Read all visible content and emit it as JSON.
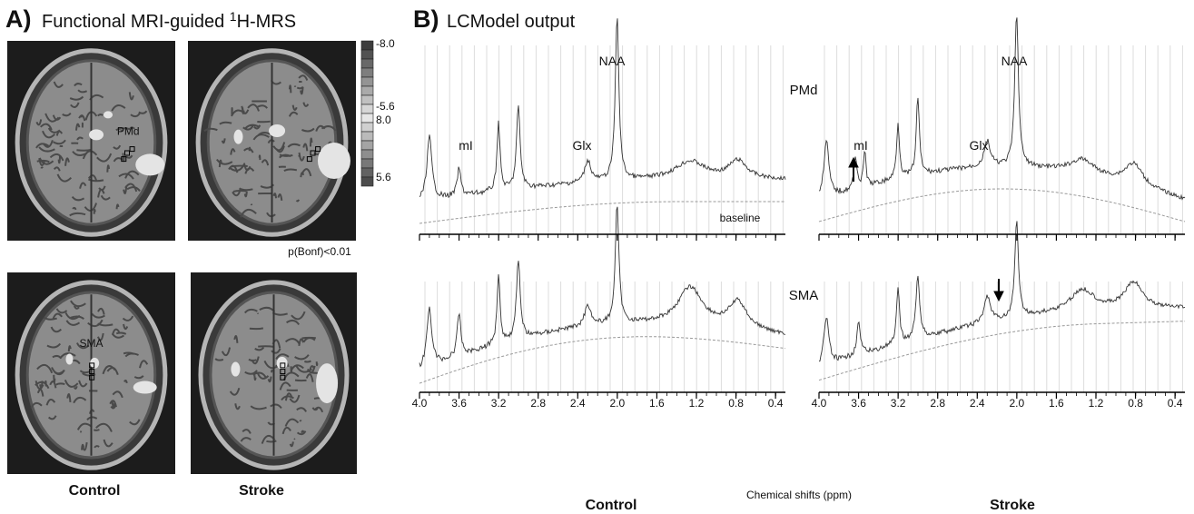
{
  "panel_a": {
    "label": "A)",
    "title_pre": "Functional MRI-guided ",
    "title_sup": "1",
    "title_post": "H-MRS",
    "colorbar_labels": [
      "-8.0",
      "-5.6",
      "8.0",
      "5.6"
    ],
    "threshold": "p(Bonf)<0.01",
    "region_labels": [
      "PMd",
      "SMA"
    ],
    "columns": [
      "Control",
      "Stroke"
    ]
  },
  "panel_b": {
    "label": "B)",
    "title": "LCModel output",
    "annotations": {
      "naa": "NAA",
      "mi": "mI",
      "glx": "Glx",
      "baseline": "baseline",
      "pmd": "PMd",
      "sma": "SMA"
    },
    "xaxis": {
      "label": "Chemical shifts (ppm)",
      "xlim": [
        4.0,
        0.3
      ],
      "xticks": [
        {
          "value": 4.0,
          "label": "4.0"
        },
        {
          "value": 3.6,
          "label": "3.6"
        },
        {
          "value": 3.2,
          "label": "3.2"
        },
        {
          "value": 2.8,
          "label": "2.8"
        },
        {
          "value": 2.4,
          "label": "2.4"
        },
        {
          "value": 2.0,
          "label": "2.0"
        },
        {
          "value": 1.6,
          "label": "1.6"
        },
        {
          "value": 1.2,
          "label": "1.2"
        },
        {
          "value": 0.8,
          "label": "0.8"
        },
        {
          "value": 0.4,
          "label": "0.4"
        }
      ]
    },
    "columns": [
      "Control",
      "Stroke"
    ]
  }
}
